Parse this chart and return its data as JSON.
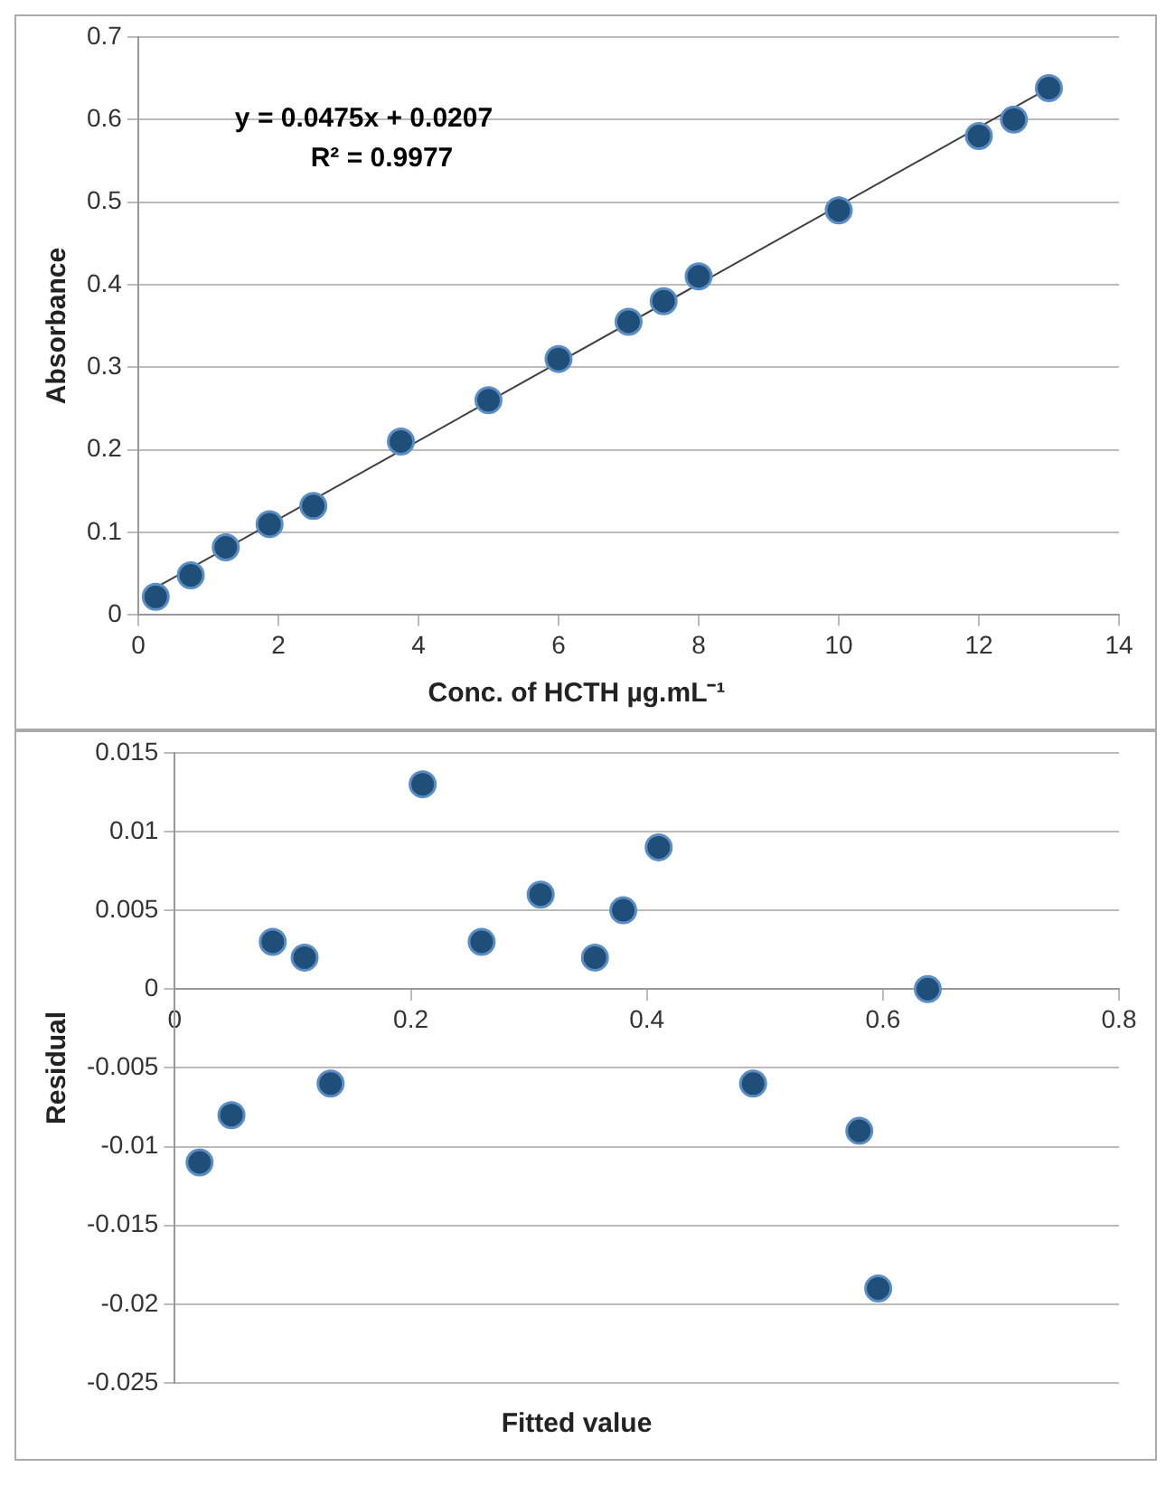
{
  "chart_data": [
    {
      "type": "scatter",
      "xlabel": "Conc. of HCTH µg.mL⁻¹",
      "ylabel": "Absorbance",
      "annotations": [
        "y = 0.0475x + 0.0207",
        "R² = 0.9977"
      ],
      "xlim": [
        0,
        14
      ],
      "xticks": [
        0,
        2,
        4,
        6,
        8,
        10,
        12,
        14
      ],
      "ylim": [
        0,
        0.7
      ],
      "yticks": [
        0,
        0.1,
        0.2,
        0.3,
        0.4,
        0.5,
        0.6,
        0.7
      ],
      "grid": "y",
      "marker": "circle",
      "legend": false,
      "series": [
        {
          "color": "#1f4e79",
          "x": [
            0.25,
            0.75,
            1.25,
            1.875,
            2.5,
            3.75,
            5,
            6,
            7,
            7.5,
            8,
            10,
            12,
            12.5,
            13
          ],
          "values": [
            0.022,
            0.048,
            0.082,
            0.11,
            0.132,
            0.21,
            0.26,
            0.31,
            0.355,
            0.38,
            0.41,
            0.49,
            0.58,
            0.6,
            0.638
          ]
        },
        {
          "type": "line",
          "marker": "none",
          "color": "#404040",
          "x": [
            0.25,
            13
          ],
          "values": [
            0.033,
            0.638
          ]
        }
      ]
    },
    {
      "type": "scatter",
      "xlabel": "Fitted value",
      "ylabel": "Residual",
      "xlim": [
        0,
        0.8
      ],
      "xticks": [
        0,
        0.2,
        0.4,
        0.6,
        0.8
      ],
      "ylim": [
        -0.025,
        0.015
      ],
      "yticks": [
        -0.025,
        -0.02,
        -0.015,
        -0.01,
        -0.005,
        0,
        0.005,
        0.01,
        0.015
      ],
      "grid": "y",
      "marker": "circle",
      "legend": false,
      "series": [
        {
          "color": "#1f4e79",
          "x": [
            0.021,
            0.048,
            0.083,
            0.11,
            0.132,
            0.21,
            0.26,
            0.31,
            0.356,
            0.38,
            0.41,
            0.49,
            0.58,
            0.596,
            0.638
          ],
          "values": [
            -0.011,
            -0.008,
            0.003,
            0.002,
            -0.006,
            0.013,
            0.003,
            0.006,
            0.002,
            0.005,
            0.009,
            -0.006,
            -0.009,
            -0.019,
            0
          ]
        }
      ]
    }
  ]
}
